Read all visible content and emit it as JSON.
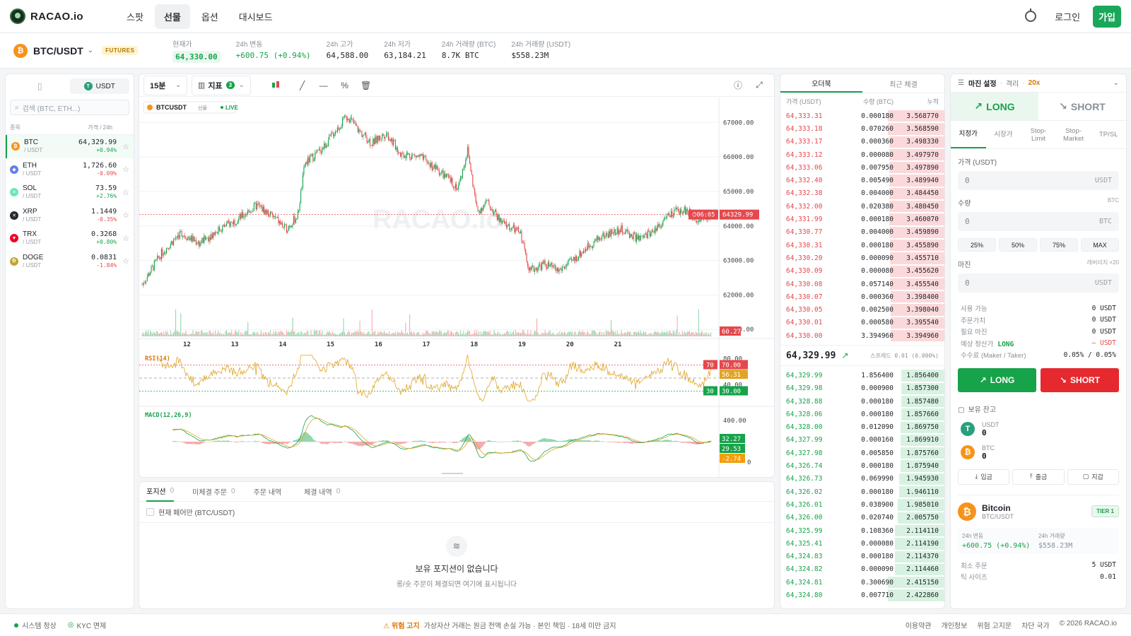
{
  "nav": {
    "logo": "RACAO.io",
    "links": [
      "스팟",
      "선물",
      "옵션",
      "대시보드"
    ],
    "active": 1,
    "login": "로그인",
    "signup": "가입"
  },
  "ticker": {
    "pair": "BTC/USDT",
    "badge": "FUTURES",
    "stats": [
      {
        "label": "현재가",
        "value": "64,330.00"
      },
      {
        "label": "24h 변동",
        "value": "+600.75 (+0.94%)"
      },
      {
        "label": "24h 고가",
        "value": "64,588.00"
      },
      {
        "label": "24h 저가",
        "value": "63,184.21"
      },
      {
        "label": "24h 거래량 (BTC)",
        "value": "8.7K BTC"
      },
      {
        "label": "24h 거래량 (USDT)",
        "value": "$558.23M"
      }
    ]
  },
  "markets": {
    "tab_usdt": "USDT",
    "search_placeholder": "검색 (BTC, ETH...)",
    "head_left": "종목",
    "head_right": "가격 / 24h",
    "items": [
      {
        "sym": "BTC",
        "quote": "/ USDT",
        "price": "64,329.99",
        "chg": "+0.94%",
        "up": true,
        "color": "#f7931a",
        "glyph": "₿"
      },
      {
        "sym": "ETH",
        "quote": "/ USDT",
        "price": "1,726.60",
        "chg": "-0.09%",
        "up": false,
        "color": "#627eea",
        "glyph": "◆"
      },
      {
        "sym": "SOL",
        "quote": "/ USDT",
        "price": "73.59",
        "chg": "+2.76%",
        "up": true,
        "color": "#6ee7b7",
        "glyph": "≡"
      },
      {
        "sym": "XRP",
        "quote": "/ USDT",
        "price": "1.1449",
        "chg": "-0.35%",
        "up": false,
        "color": "#23292f",
        "glyph": "✕"
      },
      {
        "sym": "TRX",
        "quote": "/ USDT",
        "price": "0.3268",
        "chg": "+0.80%",
        "up": true,
        "color": "#ef0027",
        "glyph": "▼"
      },
      {
        "sym": "DOGE",
        "quote": "/ USDT",
        "price": "0.0831",
        "chg": "-1.84%",
        "up": false,
        "color": "#c2a633",
        "glyph": "Ð"
      }
    ]
  },
  "chart": {
    "interval": "15분",
    "indicators_label": "지표",
    "indicators_count": "3",
    "symbol": "BTCUSDT",
    "symbol_tag": "선물",
    "live": "LIVE",
    "watermark": "RACAO.io",
    "price_ticks": [
      "67000.00",
      "66000.00",
      "65000.00",
      "64000.00",
      "63000.00",
      "62000.00",
      "61000.00"
    ],
    "date_ticks": [
      "12",
      "13",
      "14",
      "15",
      "16",
      "17",
      "18",
      "19",
      "20",
      "21"
    ],
    "last_price": "64329.99",
    "countdown": "06:05",
    "volume_label": "60.27",
    "rsi_label": "RSI(14)",
    "rsi_tags": [
      "70",
      "70.00",
      "56.31",
      "30",
      "30.00"
    ],
    "rsi_ticks": [
      "80.00",
      "40.00"
    ],
    "macd_label": "MACD(12,26,9)",
    "macd_ticks": [
      "400.00"
    ],
    "macd_tags": [
      "32.27",
      "29.53",
      "-2.74"
    ],
    "macd_zero": "0"
  },
  "chart_data": {
    "type": "line",
    "title": "",
    "series": [
      {
        "name": "BTCUSDT",
        "note": "15m candles, range approx 62300-67300"
      }
    ],
    "ylim": [
      60800,
      67600
    ],
    "x": [
      "12",
      "13",
      "14",
      "15",
      "16",
      "17",
      "18",
      "19",
      "20",
      "21"
    ]
  },
  "positions": {
    "tabs": [
      {
        "label": "포지션",
        "n": "0"
      },
      {
        "label": "미체결 주문",
        "n": "0"
      },
      {
        "label": "주문 내역",
        "n": ""
      },
      {
        "label": "체결 내역",
        "n": "0"
      }
    ],
    "filter": "현재 페어만 (BTC/USDT)",
    "empty_title": "보유 포지션이 없습니다",
    "empty_sub": "롱/숏 주문이 체결되면 여기에 표시됩니다"
  },
  "orderbook": {
    "tabs": [
      "오더북",
      "최근 체결"
    ],
    "head": [
      "가격 (USDT)",
      "수량 (BTC)",
      "누적"
    ],
    "asks": [
      [
        "64,333.31",
        "0.000180",
        "3.568770"
      ],
      [
        "64,333.18",
        "0.070260",
        "3.568590"
      ],
      [
        "64,333.17",
        "0.000360",
        "3.498330"
      ],
      [
        "64,333.12",
        "0.000080",
        "3.497970"
      ],
      [
        "64,333.06",
        "0.007950",
        "3.497890"
      ],
      [
        "64,332.40",
        "0.005490",
        "3.489940"
      ],
      [
        "64,332.38",
        "0.004000",
        "3.484450"
      ],
      [
        "64,332.00",
        "0.020380",
        "3.480450"
      ],
      [
        "64,331.99",
        "0.000180",
        "3.460070"
      ],
      [
        "64,330.77",
        "0.004000",
        "3.459890"
      ],
      [
        "64,330.31",
        "0.000180",
        "3.455890"
      ],
      [
        "64,330.20",
        "0.000090",
        "3.455710"
      ],
      [
        "64,330.09",
        "0.000080",
        "3.455620"
      ],
      [
        "64,330.08",
        "0.057140",
        "3.455540"
      ],
      [
        "64,330.07",
        "0.000360",
        "3.398400"
      ],
      [
        "64,330.05",
        "0.002500",
        "3.398040"
      ],
      [
        "64,330.01",
        "0.000580",
        "3.395540"
      ],
      [
        "64,330.00",
        "3.394960",
        "3.394960"
      ]
    ],
    "mid": "64,329.99",
    "spread": "스프레드 0.01 (0.000%)",
    "bids": [
      [
        "64,329.99",
        "1.856400",
        "1.856400"
      ],
      [
        "64,329.98",
        "0.000900",
        "1.857300"
      ],
      [
        "64,328.88",
        "0.000180",
        "1.857480"
      ],
      [
        "64,328.06",
        "0.000180",
        "1.857660"
      ],
      [
        "64,328.00",
        "0.012090",
        "1.869750"
      ],
      [
        "64,327.99",
        "0.000160",
        "1.869910"
      ],
      [
        "64,327.98",
        "0.005850",
        "1.875760"
      ],
      [
        "64,326.74",
        "0.000180",
        "1.875940"
      ],
      [
        "64,326.73",
        "0.069990",
        "1.945930"
      ],
      [
        "64,326.02",
        "0.000180",
        "1.946110"
      ],
      [
        "64,326.01",
        "0.038900",
        "1.985010"
      ],
      [
        "64,326.00",
        "0.020740",
        "2.005750"
      ],
      [
        "64,325.99",
        "0.108360",
        "2.114110"
      ],
      [
        "64,325.41",
        "0.000080",
        "2.114190"
      ],
      [
        "64,324.83",
        "0.000180",
        "2.114370"
      ],
      [
        "64,324.82",
        "0.000090",
        "2.114460"
      ],
      [
        "64,324.81",
        "0.300690",
        "2.415150"
      ],
      [
        "64,324.80",
        "0.007710",
        "2.422860"
      ]
    ]
  },
  "trade": {
    "margin_title": "마진 설정",
    "margin_mode": "격리",
    "leverage": "20x",
    "long": "LONG",
    "short": "SHORT",
    "order_types": [
      "지정가",
      "시장가",
      "Stop-\nLimit",
      "Stop-\nMarket",
      "TP/SL"
    ],
    "price_label": "가격 (USDT)",
    "price_value": "0",
    "price_unit": "USDT",
    "qty_label": "수량",
    "qty_unit_hint": "BTC",
    "qty_value": "0",
    "qty_unit": "BTC",
    "pcts": [
      "25%",
      "50%",
      "75%",
      "MAX"
    ],
    "margin_label": "마진",
    "lev_hint": "레버리지 ×20",
    "margin_value": "0",
    "margin_unit": "USDT",
    "info": [
      {
        "k": "사용 가능",
        "v": "0 USDT"
      },
      {
        "k": "주문가치",
        "v": "0 USDT"
      },
      {
        "k": "필요 마진",
        "v": "0 USDT"
      },
      {
        "k": "예상 청산가",
        "v": "— USDT",
        "tag": "LONG"
      },
      {
        "k": "수수료 (Maker / Taker)",
        "v": "0.05% / 0.05%"
      }
    ],
    "btn_long": "LONG",
    "btn_short": "SHORT",
    "balance_title": "보유 잔고",
    "balances": [
      {
        "name": "USDT",
        "value": "0",
        "color": "#26a17b",
        "glyph": "T"
      },
      {
        "name": "BTC",
        "value": "0",
        "color": "#f7931a",
        "glyph": "₿"
      }
    ],
    "actions": [
      "입금",
      "출금",
      "지갑"
    ],
    "coin_name": "Bitcoin",
    "coin_pair": "BTC/USDT",
    "tier": "TIER 1",
    "coin_chg_label": "24h 변동",
    "coin_chg": "+600.75 (+0.94%)",
    "coin_vol_label": "24h 거래량",
    "coin_vol": "$558.23M",
    "min_order_label": "최소 주문",
    "min_order": "5 USDT",
    "tick_label": "틱 사이즈",
    "tick": "0.01"
  },
  "footer": {
    "status": "시스템 정상",
    "kyc": "KYC 면제",
    "warn_title": "⚠ 위험 고지",
    "warn_text": "가상자산 거래는 원금 전액 손실 가능 · 본인 책임 · 18세 미만 금지",
    "links": [
      "이용약관",
      "개인정보",
      "위험 고지문",
      "차단 국가",
      "© 2026 RACAO.io"
    ]
  },
  "colors": {
    "up": "#16a34a",
    "down": "#e5484d",
    "accent": "#19a85a"
  }
}
